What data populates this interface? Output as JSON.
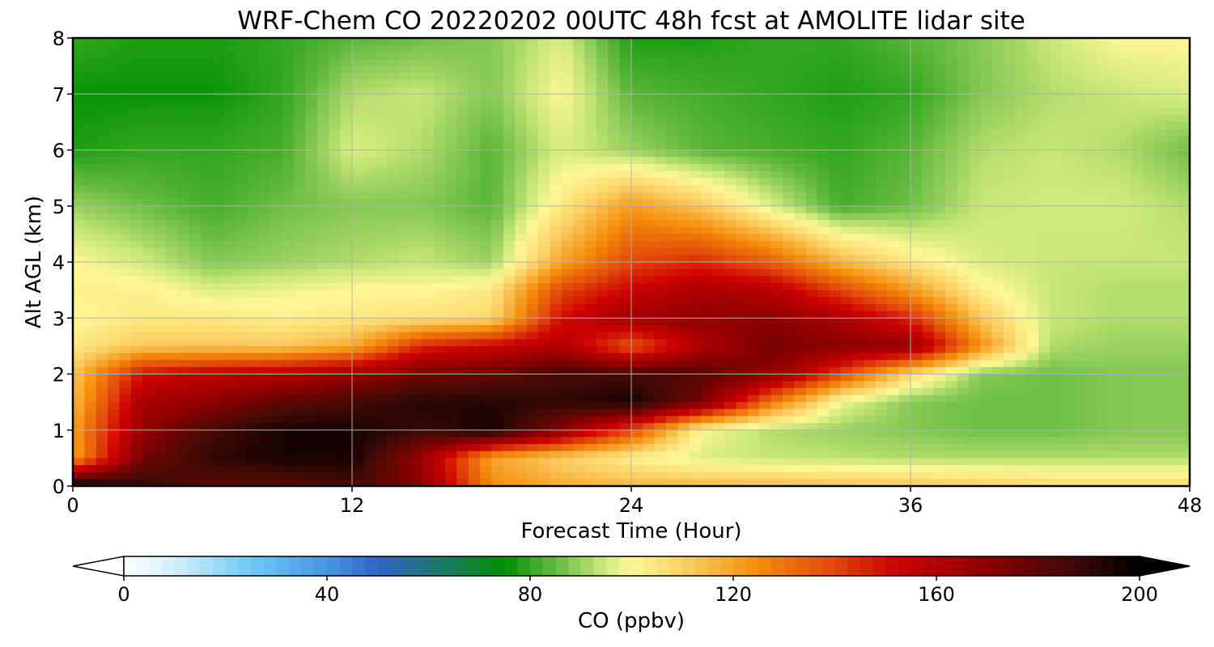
{
  "chart_data": {
    "type": "heatmap",
    "title": "WRF-Chem CO  20220202 00UTC 48h fcst at AMOLITE lidar site",
    "xlabel": "Forecast Time (Hour)",
    "ylabel": "Alt AGL (km)",
    "xlim": [
      0,
      48
    ],
    "ylim": [
      0,
      8
    ],
    "xticks": [
      0,
      12,
      24,
      36,
      48
    ],
    "yticks": [
      0,
      1,
      2,
      3,
      4,
      5,
      6,
      7,
      8
    ],
    "grid": true,
    "colorbar": {
      "label": "CO  (ppbv)",
      "range": [
        0,
        200
      ],
      "ticks": [
        0,
        40,
        80,
        120,
        160,
        200
      ],
      "extend": "both",
      "orientation": "horizontal"
    },
    "x_hours": [
      0,
      3,
      6,
      9,
      12,
      15,
      18,
      21,
      24,
      27,
      30,
      33,
      36,
      39,
      42,
      45,
      48
    ],
    "alt_km": [
      0,
      0.5,
      1,
      1.5,
      2,
      2.5,
      3,
      3.5,
      4,
      5,
      6,
      7,
      8
    ],
    "co_ppbv": [
      [
        200,
        190,
        180,
        180,
        185,
        170,
        125,
        118,
        115,
        115,
        114,
        113,
        112,
        110,
        108,
        108,
        108
      ],
      [
        120,
        175,
        190,
        195,
        195,
        165,
        120,
        110,
        102,
        96,
        94,
        93,
        92,
        92,
        92,
        92,
        92
      ],
      [
        120,
        168,
        185,
        195,
        195,
        188,
        196,
        170,
        140,
        100,
        92,
        90,
        88,
        86,
        86,
        88,
        88
      ],
      [
        115,
        162,
        170,
        180,
        185,
        192,
        192,
        190,
        195,
        175,
        130,
        98,
        88,
        86,
        86,
        88,
        88
      ],
      [
        112,
        150,
        155,
        158,
        165,
        175,
        178,
        185,
        185,
        182,
        170,
        140,
        108,
        88,
        86,
        88,
        88
      ],
      [
        104,
        112,
        112,
        112,
        118,
        145,
        152,
        160,
        135,
        160,
        175,
        170,
        168,
        125,
        92,
        90,
        90
      ],
      [
        100,
        104,
        104,
        102,
        104,
        106,
        108,
        150,
        165,
        168,
        170,
        160,
        145,
        112,
        94,
        92,
        92
      ],
      [
        102,
        102,
        96,
        98,
        100,
        100,
        104,
        140,
        152,
        162,
        158,
        140,
        122,
        102,
        94,
        92,
        92
      ],
      [
        100,
        95,
        88,
        90,
        92,
        94,
        90,
        120,
        140,
        145,
        135,
        116,
        104,
        96,
        94,
        94,
        94
      ],
      [
        90,
        86,
        82,
        86,
        88,
        88,
        84,
        104,
        122,
        112,
        96,
        82,
        86,
        94,
        95,
        95,
        92
      ],
      [
        78,
        80,
        80,
        82,
        96,
        92,
        84,
        96,
        90,
        84,
        82,
        80,
        84,
        92,
        94,
        92,
        86
      ],
      [
        76,
        76,
        76,
        80,
        92,
        94,
        88,
        100,
        84,
        82,
        80,
        78,
        80,
        88,
        92,
        94,
        96
      ],
      [
        80,
        78,
        78,
        80,
        84,
        86,
        88,
        96,
        78,
        78,
        80,
        80,
        84,
        88,
        94,
        100,
        100
      ]
    ]
  }
}
